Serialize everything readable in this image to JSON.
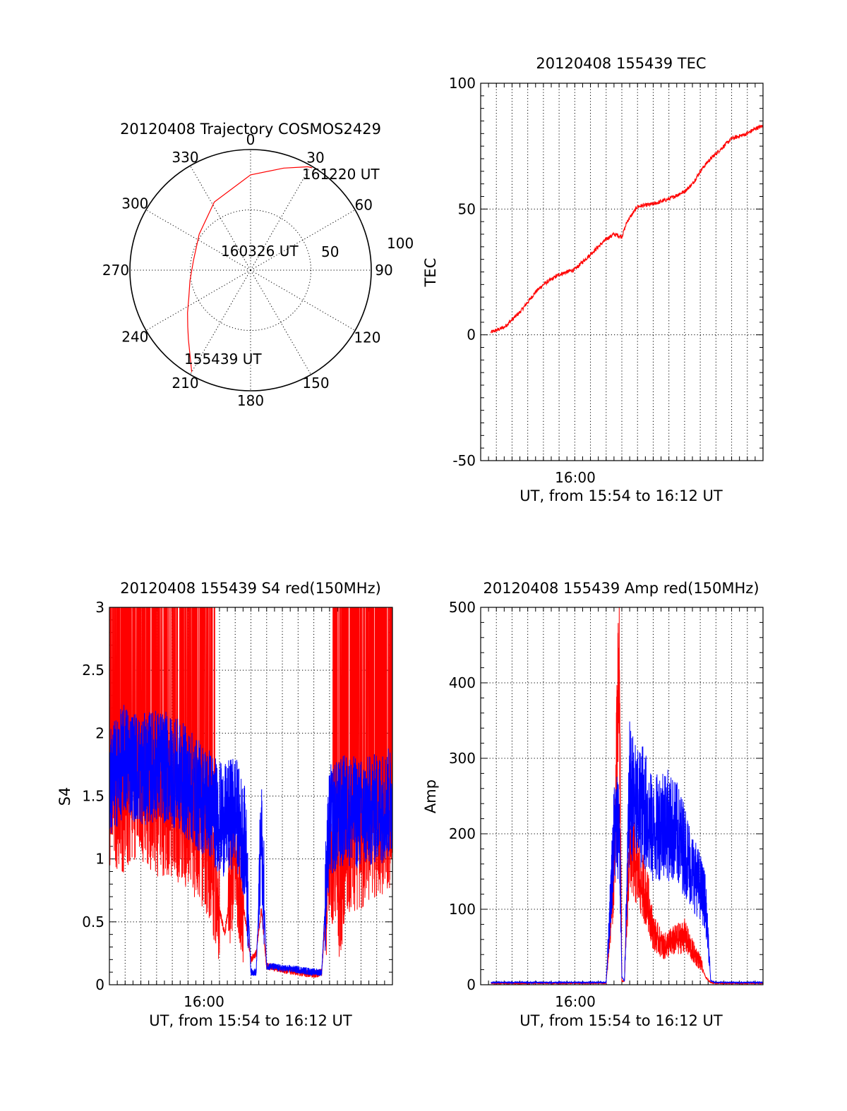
{
  "figure": {
    "colors": {
      "red": "#ff0000",
      "blue": "#0000ff",
      "axis": "#000000"
    }
  },
  "chart_data": [
    {
      "type": "polar",
      "title": "20120408 Trajectory COSMOS2429",
      "angle_labels": [
        "0",
        "30",
        "60",
        "90",
        "120",
        "150",
        "180",
        "210",
        "240",
        "270",
        "300",
        "330"
      ],
      "radial_labels": [
        "50",
        "100"
      ],
      "rlim": [
        0,
        100
      ],
      "annotations": [
        "161220 UT",
        "160326 UT",
        "155439 UT"
      ],
      "track": {
        "color": "red",
        "azimuth_deg": [
          210,
          213,
          217,
          222,
          228,
          236,
          246,
          260,
          280,
          305,
          332,
          0,
          18,
          26,
          29,
          31
        ],
        "radius": [
          97.5,
          91,
          84,
          77,
          70,
          63,
          56,
          51,
          48,
          52,
          64,
          79,
          89,
          95,
          98,
          99
        ]
      }
    },
    {
      "type": "line",
      "title": "20120408 155439 TEC",
      "xlabel": "UT, from 15:54 to 16:12 UT",
      "ylabel": "TEC",
      "x_unit": "minutes",
      "xlim": [
        "15:54",
        "16:12"
      ],
      "x_tick_label": "16:00",
      "ylim": [
        -50,
        100
      ],
      "y_ticks": [
        "-50",
        "0",
        "50",
        "100"
      ],
      "grid": true,
      "series": [
        {
          "color": "red",
          "x": [
            "15:54:39",
            "15:55:30",
            "15:56:30",
            "15:57:00",
            "15:57:30",
            "15:58:00",
            "15:58:30",
            "15:59:00",
            "15:59:30",
            "16:00:00",
            "16:00:30",
            "16:01:00",
            "16:01:30",
            "16:02:00",
            "16:02:30",
            "16:03:00",
            "16:03:20",
            "16:04:00",
            "16:05:00",
            "16:06:00",
            "16:07:00",
            "16:07:30",
            "16:08:00",
            "16:08:30",
            "16:09:00",
            "16:09:30",
            "16:10:00",
            "16:10:30",
            "16:11:00",
            "16:11:30",
            "16:12:00"
          ],
          "values": [
            1,
            3,
            9,
            13,
            17,
            20,
            22,
            24,
            25,
            26,
            29,
            32,
            35,
            38,
            40,
            39,
            45,
            51,
            52,
            54,
            57,
            60,
            65,
            69,
            72,
            75,
            78,
            79,
            80,
            82,
            83
          ]
        }
      ]
    },
    {
      "type": "line",
      "title": "20120408 155439 S4 red(150MHz)",
      "xlabel": "UT, from 15:54 to 16:12 UT",
      "ylabel": "S4",
      "x_unit": "minutes",
      "xlim": [
        "15:54",
        "16:12"
      ],
      "x_tick_label": "16:00",
      "ylim": [
        0,
        3
      ],
      "y_ticks": [
        "0",
        "0.5",
        "1",
        "1.5",
        "2",
        "2.5",
        "3"
      ],
      "grid": true,
      "series": [
        {
          "color": "red",
          "x": [
            "15:54:00",
            "15:55:00",
            "15:56:00",
            "15:57:00",
            "15:58:00",
            "15:59:00",
            "15:59:40",
            "16:00:20",
            "16:00:50",
            "16:01:20",
            "16:02:00",
            "16:02:40",
            "16:03:00",
            "16:03:20",
            "16:03:40",
            "16:04:00",
            "16:05:00",
            "16:06:00",
            "16:07:00",
            "16:07:30",
            "16:08:00",
            "16:08:40",
            "16:09:00",
            "16:10:00",
            "16:11:00",
            "16:12:00"
          ],
          "values": [
            1.4,
            1.3,
            1.4,
            1.3,
            1.3,
            1.2,
            1.1,
            0.95,
            0.7,
            0.4,
            1.0,
            0.5,
            0.2,
            0.25,
            0.6,
            0.15,
            0.12,
            0.1,
            0.08,
            0.1,
            1.0,
            0.6,
            1.0,
            1.05,
            1.15,
            1.2
          ]
        },
        {
          "color": "blue",
          "x": [
            "15:54:00",
            "15:55:00",
            "15:56:00",
            "15:57:00",
            "15:58:00",
            "15:59:00",
            "15:59:40",
            "16:00:20",
            "16:00:50",
            "16:01:20",
            "16:02:00",
            "16:02:40",
            "16:03:00",
            "16:03:20",
            "16:03:40",
            "16:04:00",
            "16:05:00",
            "16:06:00",
            "16:07:00",
            "16:07:30",
            "16:08:00",
            "16:08:40",
            "16:09:00",
            "16:10:00",
            "16:11:00",
            "16:12:00"
          ],
          "values": [
            1.6,
            1.8,
            1.7,
            1.75,
            1.7,
            1.6,
            1.5,
            1.45,
            1.35,
            1.3,
            1.4,
            1.1,
            0.1,
            0.1,
            1.2,
            0.15,
            0.13,
            0.12,
            0.1,
            0.1,
            1.3,
            1.35,
            1.4,
            1.35,
            1.4,
            1.45
          ]
        }
      ]
    },
    {
      "type": "line",
      "title": "20120408 155439 Amp red(150MHz)",
      "xlabel": "UT, from 15:54 to 16:12 UT",
      "ylabel": "Amp",
      "x_unit": "minutes",
      "xlim": [
        "15:54",
        "16:12"
      ],
      "x_tick_label": "16:00",
      "ylim": [
        0,
        500
      ],
      "y_ticks": [
        "0",
        "100",
        "200",
        "300",
        "400",
        "500"
      ],
      "grid": true,
      "series": [
        {
          "color": "red",
          "x": [
            "15:54:40",
            "15:58:00",
            "16:02:00",
            "16:02:30",
            "16:02:50",
            "16:03:00",
            "16:03:10",
            "16:03:30",
            "16:04:00",
            "16:04:20",
            "16:04:40",
            "16:05:00",
            "16:05:20",
            "16:05:40",
            "16:06:00",
            "16:06:30",
            "16:07:00",
            "16:07:30",
            "16:08:00",
            "16:08:20",
            "16:08:40",
            "16:09:00",
            "16:10:00",
            "16:12:00"
          ],
          "values": [
            2,
            2,
            2,
            150,
            420,
            5,
            5,
            190,
            150,
            130,
            110,
            70,
            60,
            50,
            55,
            60,
            65,
            45,
            30,
            10,
            3,
            2,
            2,
            2
          ]
        },
        {
          "color": "blue",
          "x": [
            "15:54:40",
            "15:58:00",
            "16:02:00",
            "16:02:30",
            "16:02:50",
            "16:03:00",
            "16:03:10",
            "16:03:30",
            "16:04:00",
            "16:04:20",
            "16:04:40",
            "16:05:00",
            "16:05:20",
            "16:05:40",
            "16:06:00",
            "16:06:30",
            "16:07:00",
            "16:07:30",
            "16:08:00",
            "16:08:20",
            "16:08:40",
            "16:09:00",
            "16:10:00",
            "16:12:00"
          ],
          "values": [
            3,
            3,
            3,
            200,
            220,
            10,
            5,
            260,
            230,
            240,
            220,
            200,
            210,
            220,
            210,
            200,
            180,
            150,
            130,
            110,
            5,
            3,
            3,
            3
          ]
        }
      ]
    }
  ]
}
